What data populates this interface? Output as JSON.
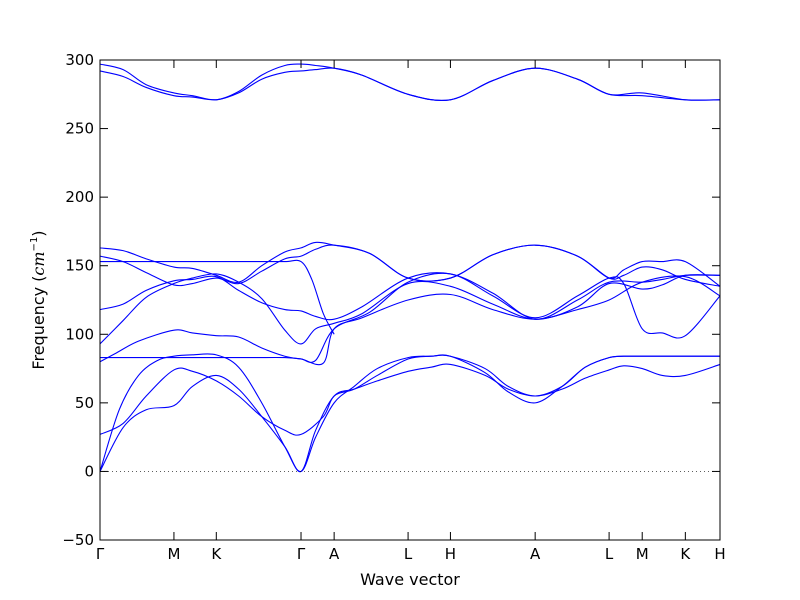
{
  "chart_data": {
    "type": "line",
    "title": "",
    "xlabel": "Wave vector",
    "ylabel_text": "Frequency (",
    "ylabel_unit": "cm",
    "ylabel_exp": "−1",
    "ylabel_close": ")",
    "ylim": [
      -50,
      300
    ],
    "yticks": [
      -50,
      0,
      50,
      100,
      150,
      200,
      250,
      300
    ],
    "xlim": [
      0,
      8.05
    ],
    "xticks": [
      {
        "label": "Γ",
        "pos": 0
      },
      {
        "label": "M",
        "pos": 0.96
      },
      {
        "label": "K",
        "pos": 1.51
      },
      {
        "label": "Γ",
        "pos": 2.61
      },
      {
        "label": "A",
        "pos": 3.04
      },
      {
        "label": "L",
        "pos": 4.0
      },
      {
        "label": "H",
        "pos": 4.55
      },
      {
        "label": "A",
        "pos": 5.65
      },
      {
        "label": "L",
        "pos": 6.61
      },
      {
        "label": "M",
        "pos": 7.04
      },
      {
        "label": "K",
        "pos": 7.6
      },
      {
        "label": "H",
        "pos": 8.05
      }
    ],
    "zero_line": true,
    "grid": false,
    "legend": "none",
    "line_color": "#0000ff",
    "series": [
      {
        "x": [
          0,
          0.25,
          0.5,
          0.75,
          0.96,
          1.2,
          1.51,
          1.8,
          2.1,
          2.4,
          2.61,
          2.8,
          3.04,
          3.3,
          3.6,
          4.0,
          4.3,
          4.55,
          5.0,
          5.3,
          5.65,
          6.0,
          6.3,
          6.61,
          6.8,
          7.04,
          7.3,
          7.6,
          8.05
        ],
        "y": [
          0,
          45,
          70,
          81,
          84,
          85,
          85,
          76,
          50,
          18,
          0,
          25,
          50,
          62,
          75,
          83,
          84,
          84,
          72,
          58,
          50,
          62,
          76,
          83,
          84,
          84,
          84,
          84,
          84
        ]
      },
      {
        "x": [
          0,
          0.3,
          0.6,
          0.96,
          1.2,
          1.51,
          1.8,
          2.1,
          2.4,
          2.61,
          2.8,
          3.04,
          3.3,
          3.6,
          4.0,
          4.3,
          4.55,
          5.0,
          5.3,
          5.65,
          6.0,
          6.3,
          6.61,
          6.8,
          7.04,
          7.3,
          7.6,
          8.05
        ],
        "y": [
          0,
          32,
          45,
          48,
          62,
          70,
          60,
          40,
          18,
          0,
          30,
          55,
          60,
          66,
          73,
          76,
          78,
          70,
          60,
          55,
          60,
          68,
          74,
          77,
          75,
          70,
          70,
          78
        ]
      },
      {
        "x": [
          0,
          0.3,
          0.6,
          0.96,
          1.2,
          1.51,
          1.8,
          2.1,
          2.4,
          2.61,
          2.9,
          3.04,
          3.3,
          3.6,
          4.0,
          4.3,
          4.55,
          5.0,
          5.3,
          5.65,
          6.0,
          6.3,
          6.61,
          6.8,
          7.04,
          7.3,
          7.6,
          8.05
        ],
        "y": [
          27,
          35,
          55,
          74,
          73,
          66,
          55,
          40,
          30,
          27,
          40,
          55,
          60,
          70,
          82,
          84,
          84,
          75,
          62,
          55,
          62,
          76,
          83,
          84,
          84,
          84,
          84,
          84
        ]
      },
      {
        "x": [
          0,
          0.3,
          0.7,
          1.1,
          1.51,
          2.0,
          2.4,
          2.61,
          2.9,
          3.04,
          3.4,
          4.0,
          4.55,
          5.1,
          5.65,
          6.2,
          6.61,
          7.04,
          7.6,
          8.05
        ],
        "y": [
          83,
          83,
          83,
          83,
          83,
          83,
          83,
          82,
          79,
          104,
          112,
          125,
          129,
          118,
          111,
          118,
          125,
          138,
          142,
          128
        ]
      },
      {
        "x": [
          0,
          0.2,
          0.5,
          0.96,
          1.2,
          1.51,
          1.8,
          2.1,
          2.4,
          2.61,
          2.8,
          3.04,
          3.5,
          4.0,
          4.55,
          5.1,
          5.65,
          6.2,
          6.61,
          6.8,
          7.04,
          7.3,
          7.6,
          8.05
        ],
        "y": [
          80,
          86,
          95,
          103,
          101,
          99,
          98,
          90,
          84,
          82,
          81,
          104,
          116,
          138,
          144,
          128,
          112,
          128,
          141,
          137,
          104,
          101,
          99,
          128
        ]
      },
      {
        "x": [
          0,
          0.3,
          0.6,
          0.96,
          1.2,
          1.51,
          1.8,
          2.1,
          2.4,
          2.61,
          2.8,
          3.04,
          3.4,
          4.0,
          4.55,
          5.1,
          5.65,
          6.2,
          6.61,
          7.04,
          7.3,
          7.6,
          8.05
        ],
        "y": [
          93,
          110,
          127,
          137,
          141,
          144,
          138,
          126,
          103,
          93,
          104,
          108,
          115,
          137,
          135,
          122,
          111,
          120,
          137,
          133,
          136,
          143,
          143
        ]
      },
      {
        "x": [
          0,
          0.3,
          0.6,
          0.96,
          1.2,
          1.51,
          1.8,
          2.1,
          2.4,
          2.61,
          2.8,
          3.04,
          3.4,
          4.0,
          4.55,
          5.1,
          5.65,
          6.2,
          6.61,
          7.04,
          7.3,
          7.6,
          8.05
        ],
        "y": [
          118,
          122,
          132,
          139,
          140,
          142,
          132,
          123,
          118,
          117,
          113,
          111,
          120,
          141,
          144,
          130,
          111,
          125,
          138,
          138,
          140,
          143,
          143
        ]
      },
      {
        "x": [
          0,
          0.3,
          0.6,
          0.96,
          1.2,
          1.51,
          1.8,
          2.1,
          2.4,
          2.61,
          2.8,
          3.04,
          3.5,
          4.0,
          4.55,
          5.1,
          5.65,
          6.2,
          6.61,
          6.8,
          7.04,
          7.3,
          7.6,
          8.05
        ],
        "y": [
          157,
          153,
          145,
          136,
          137,
          141,
          137,
          146,
          155,
          157,
          162,
          165,
          159,
          141,
          141,
          158,
          165,
          157,
          141,
          143,
          149,
          147,
          140,
          135
        ]
      },
      {
        "x": [
          0,
          0.3,
          0.6,
          0.96,
          1.2,
          1.51,
          1.8,
          2.1,
          2.4,
          2.61,
          2.8,
          3.04,
          3.5,
          4.0,
          4.55,
          5.1,
          5.65,
          6.2,
          6.61,
          6.8,
          7.04,
          7.3,
          7.6,
          8.05
        ],
        "y": [
          163,
          161,
          155,
          149,
          148,
          143,
          138,
          150,
          160,
          163,
          167,
          165,
          159,
          141,
          141,
          158,
          165,
          157,
          141,
          147,
          153,
          153,
          153,
          135
        ]
      },
      {
        "x": [
          0,
          0.5,
          1.0,
          1.51,
          2.0,
          2.4,
          2.61,
          2.75,
          2.9,
          3.04
        ],
        "y": [
          153,
          153,
          153,
          153,
          153,
          153,
          153,
          140,
          115,
          100
        ]
      },
      {
        "x": [
          0,
          0.3,
          0.6,
          0.96,
          1.2,
          1.51,
          1.8,
          2.1,
          2.4,
          2.61,
          2.8,
          3.04,
          3.4,
          4.0,
          4.55,
          5.1,
          5.65,
          6.2,
          6.61,
          7.04,
          7.6,
          8.05
        ],
        "y": [
          297,
          293,
          282,
          276,
          274,
          271,
          277,
          289,
          296,
          297,
          296,
          294,
          289,
          275,
          271,
          285,
          294,
          286,
          275,
          274,
          271,
          271
        ]
      },
      {
        "x": [
          0,
          0.3,
          0.6,
          0.96,
          1.2,
          1.51,
          1.8,
          2.1,
          2.4,
          2.61,
          2.8,
          3.04,
          3.4,
          4.0,
          4.55,
          5.1,
          5.65,
          6.2,
          6.61,
          7.04,
          7.6,
          8.05
        ],
        "y": [
          292,
          288,
          280,
          274,
          273,
          271,
          276,
          286,
          291,
          292,
          293,
          294,
          289,
          275,
          271,
          285,
          294,
          286,
          275,
          276,
          271,
          271
        ]
      }
    ]
  }
}
